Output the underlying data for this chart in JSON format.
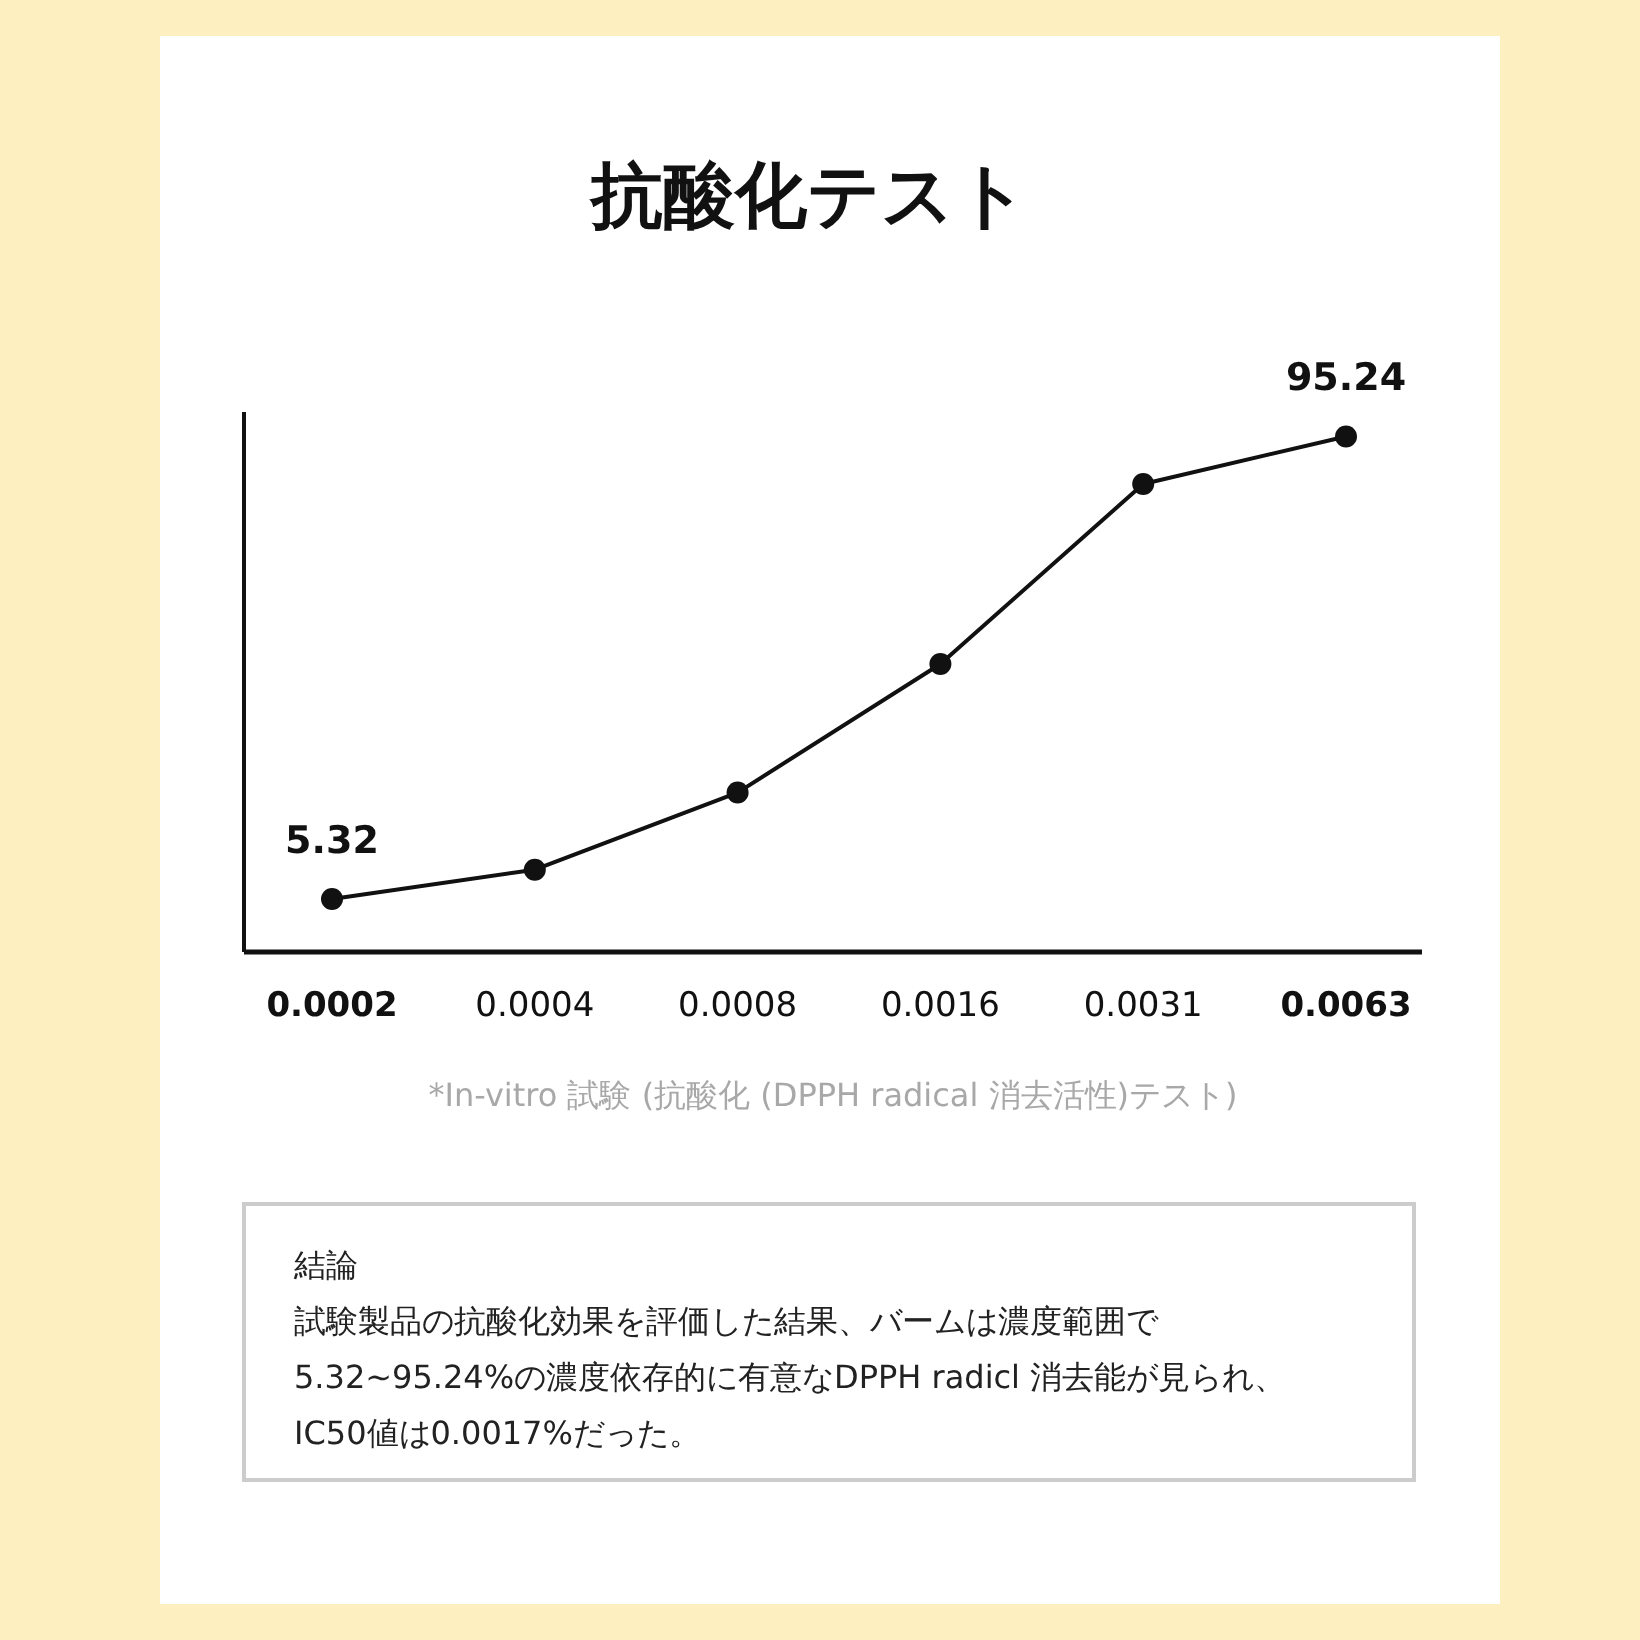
{
  "chart_data": {
    "type": "line",
    "title": "抗酸化テスト",
    "categories": [
      "0.0002",
      "0.0004",
      "0.0008",
      "0.0016",
      "0.0031",
      "0.0063"
    ],
    "series": [
      {
        "color": "#111111",
        "values": [
          5.32,
          11,
          26,
          51,
          86,
          95.24
        ],
        "value_labels": [
          "5.32",
          null,
          null,
          null,
          null,
          "95.24"
        ]
      }
    ],
    "ylim": [
      -5,
      100
    ],
    "tick_labels": "x",
    "marker": "circle",
    "line_style": "solid",
    "annotations": [
      "*In-vitro 試験 (抗酸化 (DPPH radical 消去活性)テスト)",
      "結論",
      "試験製品の抗酸化効果を評価した結果、バームは濃度範囲で5.32~95.24%の濃度依存的に有意なDPPH radicl 消去能が見られ、IC50値は0.0017%だった。"
    ]
  }
}
